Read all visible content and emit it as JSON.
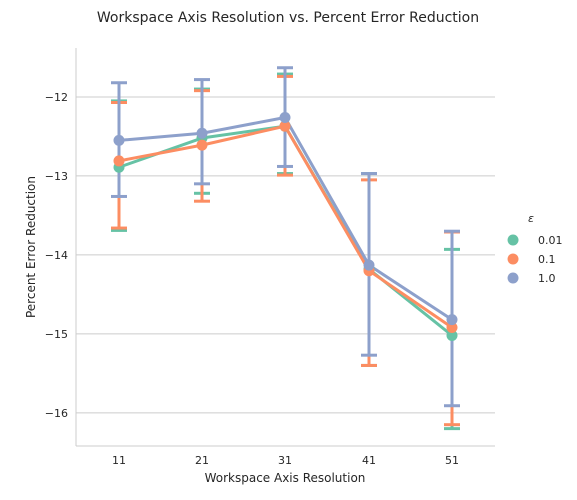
{
  "chart_data": {
    "type": "line",
    "title": "Workspace Axis Resolution vs. Percent Error Reduction",
    "xlabel": "Workspace Axis Resolution",
    "ylabel": "Percent Error Reduction",
    "categories": [
      "11",
      "21",
      "31",
      "41",
      "51"
    ],
    "yticks": [
      "-12",
      "-13",
      "-14",
      "-15",
      "-16"
    ],
    "ylim": [
      -16.42,
      -11.38
    ],
    "grid": "horizontal",
    "legend_title": "ε",
    "legend_position": "right",
    "series": [
      {
        "name": "0.01",
        "color": "#66c2a5",
        "values": [
          -12.89,
          -12.52,
          -12.37,
          -14.18,
          -15.02
        ],
        "err_low": [
          -13.69,
          -13.22,
          -12.97,
          -15.4,
          -16.2
        ],
        "err_high": [
          -12.05,
          -11.9,
          -11.71,
          -12.97,
          -13.93
        ]
      },
      {
        "name": "0.1",
        "color": "#fc8d62",
        "values": [
          -12.81,
          -12.61,
          -12.37,
          -14.2,
          -14.92
        ],
        "err_low": [
          -13.66,
          -13.32,
          -12.99,
          -15.4,
          -16.15
        ],
        "err_high": [
          -12.07,
          -11.92,
          -11.74,
          -13.05,
          -13.71
        ]
      },
      {
        "name": "1.0",
        "color": "#8da0cb",
        "values": [
          -12.55,
          -12.46,
          -12.26,
          -14.13,
          -14.82
        ],
        "err_low": [
          -13.26,
          -13.1,
          -12.88,
          -15.27,
          -15.91
        ],
        "err_high": [
          -11.82,
          -11.78,
          -11.63,
          -12.97,
          -13.7
        ]
      }
    ]
  }
}
